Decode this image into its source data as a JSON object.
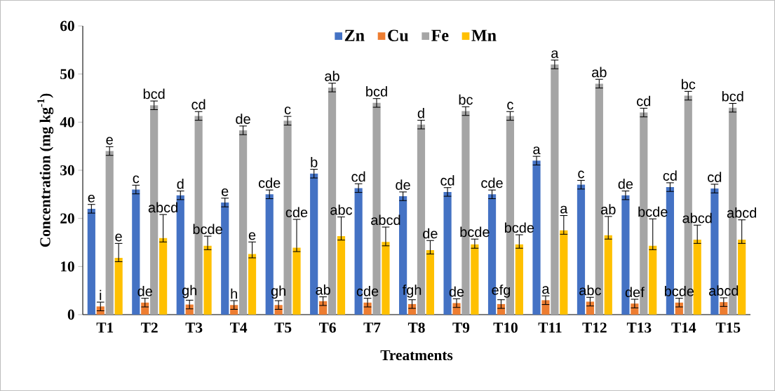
{
  "chart_data": {
    "type": "bar",
    "xlabel": "Treatments",
    "ylabel": "Concentration (mg kg$^{-1}$)",
    "categories": [
      "T1",
      "T2",
      "T3",
      "T4",
      "T5",
      "T6",
      "T7",
      "T8",
      "T9",
      "T10",
      "T11",
      "T12",
      "T13",
      "T14",
      "T15"
    ],
    "ylim": [
      0,
      60
    ],
    "yticks": [
      0,
      10,
      20,
      30,
      40,
      50,
      60
    ],
    "legend": "top",
    "series": [
      {
        "name": "Zn",
        "color": "#4472c4",
        "values": [
          22,
          26,
          24.8,
          23.3,
          25,
          29.3,
          26.3,
          24.6,
          25.5,
          25,
          32,
          27,
          24.8,
          26.5,
          26.2
        ],
        "errors": [
          0.9,
          0.9,
          0.9,
          0.9,
          0.9,
          0.9,
          0.9,
          0.9,
          0.9,
          0.9,
          0.9,
          0.9,
          0.9,
          0.9,
          0.9
        ],
        "value_labels": [
          "e",
          "c",
          "d",
          "e",
          "cde",
          "b",
          "cd",
          "de",
          "cd",
          "cde",
          "a",
          "c",
          "de",
          "cd",
          "cd"
        ]
      },
      {
        "name": "Cu",
        "color": "#ed7d31",
        "values": [
          1.7,
          2.5,
          2.1,
          2,
          2,
          2.8,
          2.5,
          2.2,
          2.4,
          2.2,
          3,
          2.7,
          2.3,
          2.5,
          2.6
        ],
        "errors": [
          0.9,
          0.9,
          0.9,
          0.9,
          0.9,
          0.9,
          0.9,
          0.9,
          0.9,
          0.9,
          0.9,
          0.9,
          0.9,
          0.9,
          0.9
        ],
        "value_labels": [
          "i",
          "de",
          "gh",
          "h",
          "gh",
          "ab",
          "cde",
          "fgh",
          "de",
          "efg",
          "a",
          "abc",
          "def",
          "bcde",
          "abcd"
        ]
      },
      {
        "name": "Fe",
        "color": "#a5a5a5",
        "values": [
          34,
          43.5,
          41.3,
          38.3,
          40.3,
          47.2,
          44,
          39.5,
          42.3,
          41.3,
          52,
          48,
          42,
          45.5,
          43
        ],
        "errors": [
          0.9,
          0.9,
          0.9,
          0.9,
          0.9,
          0.9,
          0.9,
          0.9,
          0.9,
          0.9,
          0.9,
          0.9,
          0.9,
          0.9,
          0.9
        ],
        "value_labels": [
          "e",
          "bcd",
          "cd",
          "de",
          "c",
          "ab",
          "bcd",
          "d",
          "bc",
          "c",
          "a",
          "ab",
          "cd",
          "bc",
          "bcd"
        ]
      },
      {
        "name": "Mn",
        "color": "#ffc000",
        "values": [
          11.8,
          15.9,
          14.3,
          12.6,
          13.9,
          16.3,
          15.1,
          13.4,
          14.6,
          14.6,
          17.5,
          16.5,
          14.3,
          15.6,
          15.6
        ],
        "errors": [
          [
            11,
            14.8
          ],
          [
            15.1,
            20.8
          ],
          [
            13.5,
            16.3
          ],
          [
            11.8,
            15.1
          ],
          [
            13.1,
            19.8
          ],
          [
            15.5,
            20.3
          ],
          [
            14.3,
            18.2
          ],
          [
            12.6,
            15.4
          ],
          [
            13.8,
            15.7
          ],
          [
            13.8,
            16.6
          ],
          [
            16.7,
            20.6
          ],
          [
            15.7,
            20.4
          ],
          [
            13.5,
            19.9
          ],
          [
            14.8,
            18.6
          ],
          [
            14.8,
            19.7
          ]
        ],
        "value_labels": [
          "e",
          "abcd",
          "bcde",
          "e",
          "cde",
          "abc",
          "abcd",
          "de",
          "bcde",
          "bcde",
          "a",
          "ab",
          "bcde",
          "abcd",
          "abcd"
        ]
      }
    ]
  }
}
